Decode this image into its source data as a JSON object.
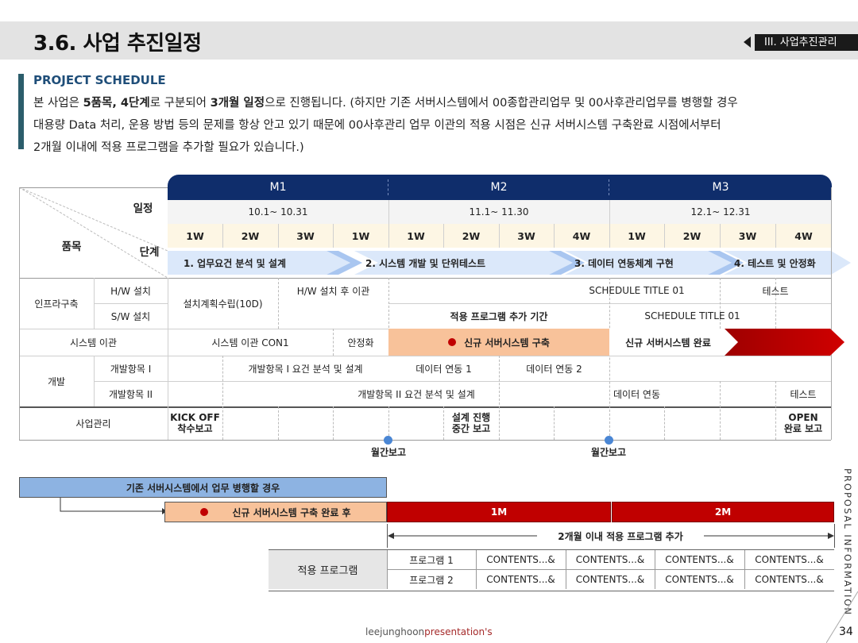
{
  "page": {
    "title": "3.6. 사업 추진일정",
    "section_tag": "III. 사업추진관리",
    "subheading": "PROJECT SCHEDULE",
    "desc_line1_a": "본 사업은 ",
    "desc_line1_b": "5품목, 4단계",
    "desc_line1_c": "로 구분되어 ",
    "desc_line1_d": "3개월 일정",
    "desc_line1_e": "으로 진행됩니다. (하지만 기존 서버시스템에서 00종합관리업무 및 00사후관리업무를 병행할 경우",
    "desc_line2": "대용량 Data 처리, 운용 방법 등의 문제를 항상 안고 있기 때문에 00사후관리 업무 이관의 적용 시점은 신규 서버시스템 구축완료 시점에서부터",
    "desc_line3": "2개월 이내에 적용 프로그램을 추가할 필요가 있습니다.)",
    "vertical_text": "PROPOSAL INFORMATION",
    "footer_a": "leejunghoon",
    "footer_b": "presentation's",
    "page_number": "34"
  },
  "schedule": {
    "corner_top": "일정",
    "corner_left": "품목",
    "corner_right": "단계",
    "months": [
      "M1",
      "M2",
      "M3"
    ],
    "date_ranges": [
      "10.1~ 10.31",
      "11.1~ 11.30",
      "12.1~ 12.31"
    ],
    "weeks": [
      "1W",
      "2W",
      "3W",
      "1W",
      "1W",
      "2W",
      "3W",
      "4W",
      "1W",
      "2W",
      "3W",
      "4W"
    ],
    "stages": [
      "1. 업무요건 분석 및 설계",
      "2. 시스템 개발 및 단위테스트",
      "3. 데이터 연동체계 구현",
      "4. 테스트 및 안정화"
    ],
    "rows": {
      "infra": "인프라구축",
      "hw": "H/W 설치",
      "sw": "S/W 설치",
      "infra_plan": "설치계획수립(10D)",
      "hw_move": "H/W 설치 후 이관",
      "schedule_title_1": "SCHEDULE TITLE 01",
      "test1": "테스트",
      "apply_period": "적용 프로그램 추가 기간",
      "schedule_title_2": "SCHEDULE TITLE 01",
      "sys_move": "시스템 이관",
      "sys_move_con": "시스템 이관 CON1",
      "stabilize": "안정화",
      "new_build": "신규 서버시스템 구축",
      "new_done": "신규 서버시스템 완료",
      "dev": "개발",
      "dev1": "개발항목 I",
      "dev2": "개발항목 II",
      "dev1_design": "개발항목 I 요건 분석 및 설계",
      "data_link1": "데이터 연동 1",
      "data_link2": "데이터 연동 2",
      "dev2_design": "개발항목 II 요건 분석 및 설계",
      "data_link": "데이터 연동",
      "test2": "테스트",
      "mgmt": "사업관리",
      "kickoff": "KICK OFF\n착수보고",
      "mid": "설계 진행\n중간 보고",
      "open": "OPEN\n완료 보고",
      "monthly1": "월간보고",
      "monthly2": "월간보고"
    }
  },
  "bottom": {
    "parallel": "기존 서버시스템에서 업무 병행할 경우",
    "after_build": "신규 서버시스템 구축 완료 후",
    "m1": "1M",
    "m2": "2M",
    "within": "2개월 이내 적용 프로그램 추가",
    "apply_program": "적용 프로그램",
    "programs": [
      "프로그램 1",
      "프로그램 2"
    ],
    "contents": [
      "CONTENTS...&",
      "CONTENTS...&",
      "CONTENTS...&",
      "CONTENTS...&"
    ]
  },
  "colors": {
    "navy": "#0f2d6b",
    "red": "#c00000",
    "peach": "#f8c29a",
    "light_blue": "#8db3e2",
    "stage_arrow": "#cfe0f7"
  }
}
